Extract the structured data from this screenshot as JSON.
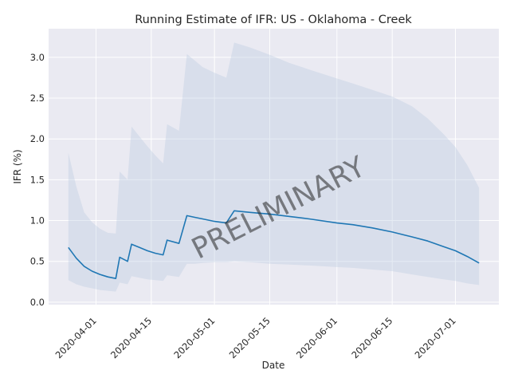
{
  "chart_data": {
    "type": "line",
    "title": "Running Estimate of IFR: US - Oklahoma - Creek",
    "xlabel": "Date",
    "ylabel": "IFR (%)",
    "watermark": "PRELIMINARY",
    "xlim": [
      "2020-03-20",
      "2020-07-12"
    ],
    "ylim": [
      -0.03,
      3.35
    ],
    "x_ticks": [
      "2020-04-01",
      "2020-04-15",
      "2020-05-01",
      "2020-05-15",
      "2020-06-01",
      "2020-06-15",
      "2020-07-01"
    ],
    "y_ticks": [
      "0.0",
      "0.5",
      "1.0",
      "1.5",
      "2.0",
      "2.5",
      "3.0"
    ],
    "grid": true,
    "colors": {
      "background": "#eaeaf2",
      "grid": "#ffffff",
      "line": "#1f77b4",
      "band": "#b0c4de",
      "watermark": "#808080"
    },
    "series": [
      {
        "x": [
          "2020-03-25",
          "2020-03-27",
          "2020-03-29",
          "2020-03-31",
          "2020-04-02",
          "2020-04-04",
          "2020-04-06",
          "2020-04-07",
          "2020-04-09",
          "2020-04-10",
          "2020-04-12",
          "2020-04-14",
          "2020-04-16",
          "2020-04-18",
          "2020-04-19",
          "2020-04-22",
          "2020-04-24",
          "2020-04-26",
          "2020-04-28",
          "2020-05-01",
          "2020-05-04",
          "2020-05-06",
          "2020-05-10",
          "2020-05-15",
          "2020-05-20",
          "2020-05-25",
          "2020-06-01",
          "2020-06-05",
          "2020-06-10",
          "2020-06-15",
          "2020-06-20",
          "2020-06-24",
          "2020-06-28",
          "2020-07-01",
          "2020-07-04",
          "2020-07-07"
        ],
        "values": [
          0.67,
          0.54,
          0.44,
          0.38,
          0.34,
          0.31,
          0.29,
          0.55,
          0.5,
          0.71,
          0.67,
          0.63,
          0.6,
          0.58,
          0.76,
          0.72,
          1.06,
          1.04,
          1.02,
          0.99,
          0.97,
          1.12,
          1.1,
          1.08,
          1.05,
          1.02,
          0.97,
          0.95,
          0.91,
          0.86,
          0.8,
          0.75,
          0.68,
          0.63,
          0.56,
          0.48
        ]
      }
    ],
    "band": {
      "upper": [
        1.83,
        1.42,
        1.1,
        0.98,
        0.9,
        0.85,
        0.84,
        1.6,
        1.5,
        2.15,
        2.03,
        1.91,
        1.8,
        1.7,
        2.18,
        2.1,
        3.04,
        2.96,
        2.88,
        2.81,
        2.75,
        3.18,
        3.12,
        3.03,
        2.93,
        2.85,
        2.74,
        2.68,
        2.6,
        2.52,
        2.4,
        2.25,
        2.06,
        1.9,
        1.68,
        1.4
      ],
      "lower": [
        0.27,
        0.22,
        0.19,
        0.17,
        0.15,
        0.14,
        0.13,
        0.24,
        0.22,
        0.32,
        0.3,
        0.28,
        0.27,
        0.26,
        0.33,
        0.31,
        0.47,
        0.47,
        0.48,
        0.49,
        0.49,
        0.5,
        0.49,
        0.47,
        0.46,
        0.45,
        0.43,
        0.42,
        0.4,
        0.38,
        0.34,
        0.31,
        0.28,
        0.26,
        0.23,
        0.21
      ]
    }
  }
}
